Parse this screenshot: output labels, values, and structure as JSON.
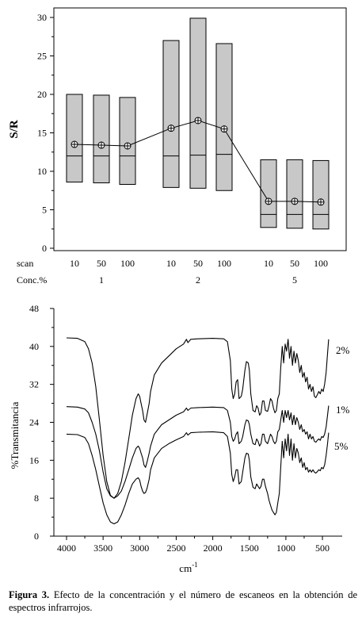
{
  "chart_data": [
    {
      "type": "box",
      "ylabel": "S/R",
      "xlabel": "",
      "ylim": [
        -1,
        31
      ],
      "yticks": [
        0,
        5,
        10,
        15,
        20,
        25,
        30
      ],
      "scan_row_label": "scan",
      "conc_row_label": "Conc.%",
      "categories": [
        "10",
        "50",
        "100",
        "10",
        "50",
        "100",
        "10",
        "50",
        "100"
      ],
      "groups": [
        {
          "label": "1",
          "members": [
            0,
            1,
            2
          ]
        },
        {
          "label": "2",
          "members": [
            3,
            4,
            5
          ]
        },
        {
          "label": "5",
          "members": [
            6,
            7,
            8
          ]
        }
      ],
      "boxes": [
        {
          "low": 8.6,
          "high": 20.0,
          "median": 12.0,
          "mean": 13.5
        },
        {
          "low": 8.5,
          "high": 19.9,
          "median": 12.0,
          "mean": 13.4
        },
        {
          "low": 8.3,
          "high": 19.6,
          "median": 12.0,
          "mean": 13.3
        },
        {
          "low": 7.9,
          "high": 27.0,
          "median": 12.0,
          "mean": 15.6
        },
        {
          "low": 7.8,
          "high": 29.9,
          "median": 12.1,
          "mean": 16.6
        },
        {
          "low": 7.5,
          "high": 26.6,
          "median": 12.2,
          "mean": 15.5
        },
        {
          "low": 2.7,
          "high": 11.5,
          "median": 4.4,
          "mean": 6.1
        },
        {
          "low": 2.6,
          "high": 11.5,
          "median": 4.4,
          "mean": 6.1
        },
        {
          "low": 2.5,
          "high": 11.4,
          "median": 4.4,
          "mean": 6.0
        }
      ],
      "mean_line": true
    },
    {
      "type": "line",
      "ylabel": "%Transmitancia",
      "xlabel": "cm",
      "xlabel_superscript": "-1",
      "xlim": [
        4000,
        400
      ],
      "ylim": [
        0,
        48
      ],
      "xticks": [
        4000,
        3500,
        3000,
        2500,
        2000,
        1500,
        1000,
        500
      ],
      "yticks": [
        0,
        8,
        16,
        24,
        32,
        40,
        48
      ],
      "series": [
        {
          "name": "2%",
          "color": "#000000",
          "x": [
            4000,
            3850,
            3750,
            3700,
            3650,
            3600,
            3550,
            3500,
            3450,
            3400,
            3350,
            3300,
            3250,
            3200,
            3150,
            3100,
            3050,
            3020,
            3000,
            2980,
            2960,
            2940,
            2920,
            2900,
            2870,
            2850,
            2800,
            2700,
            2600,
            2500,
            2400,
            2360,
            2340,
            2300,
            2200,
            2000,
            1850,
            1800,
            1760,
            1740,
            1720,
            1700,
            1680,
            1660,
            1640,
            1610,
            1590,
            1560,
            1540,
            1515,
            1500,
            1480,
            1450,
            1420,
            1400,
            1380,
            1360,
            1340,
            1320,
            1300,
            1280,
            1250,
            1230,
            1210,
            1190,
            1170,
            1150,
            1130,
            1110,
            1090,
            1070,
            1050,
            1030,
            1010,
            990,
            970,
            950,
            930,
            910,
            890,
            870,
            850,
            830,
            810,
            790,
            770,
            750,
            730,
            710,
            690,
            670,
            650,
            630,
            610,
            590,
            570,
            550,
            530,
            510,
            490,
            470,
            450,
            430,
            415
          ],
          "y": [
            41.8,
            41.7,
            41.0,
            39.5,
            36.5,
            31.5,
            24.5,
            17.0,
            11.5,
            8.6,
            8.0,
            9.0,
            11.5,
            15.5,
            20.5,
            25.5,
            29.0,
            30.0,
            29.5,
            28.0,
            26.5,
            24.5,
            24.0,
            25.5,
            28.0,
            30.5,
            34.0,
            36.5,
            38.0,
            39.5,
            40.5,
            41.5,
            40.8,
            41.5,
            41.6,
            41.7,
            41.6,
            41.0,
            37.0,
            31.0,
            29.0,
            30.0,
            32.5,
            33.0,
            29.0,
            29.5,
            31.0,
            35.0,
            36.8,
            36.5,
            35.0,
            30.0,
            26.5,
            26.2,
            27.5,
            27.0,
            25.5,
            26.0,
            28.5,
            28.5,
            26.5,
            26.3,
            27.5,
            29.0,
            28.5,
            27.0,
            26.0,
            26.5,
            29.0,
            30.0,
            35.5,
            40.0,
            36.5,
            40.5,
            39.0,
            41.5,
            37.5,
            40.0,
            36.0,
            39.0,
            36.5,
            38.5,
            37.0,
            34.5,
            36.0,
            33.5,
            34.5,
            32.5,
            33.5,
            31.0,
            32.0,
            30.5,
            31.5,
            29.5,
            29.2,
            29.8,
            30.5,
            30.0,
            31.0,
            30.5,
            32.0,
            34.5,
            38.5,
            41.5
          ]
        },
        {
          "name": "1%",
          "color": "#000000",
          "x": [
            4000,
            3850,
            3750,
            3700,
            3650,
            3600,
            3550,
            3500,
            3450,
            3400,
            3350,
            3300,
            3250,
            3200,
            3150,
            3100,
            3050,
            3020,
            3000,
            2980,
            2960,
            2940,
            2920,
            2900,
            2870,
            2850,
            2800,
            2700,
            2600,
            2500,
            2400,
            2360,
            2340,
            2300,
            2200,
            2000,
            1850,
            1800,
            1760,
            1740,
            1720,
            1700,
            1680,
            1660,
            1640,
            1610,
            1590,
            1560,
            1540,
            1515,
            1500,
            1480,
            1450,
            1420,
            1400,
            1380,
            1360,
            1340,
            1320,
            1300,
            1280,
            1250,
            1230,
            1210,
            1190,
            1170,
            1150,
            1130,
            1110,
            1090,
            1070,
            1050,
            1030,
            1010,
            990,
            970,
            950,
            930,
            910,
            890,
            870,
            850,
            830,
            810,
            790,
            770,
            750,
            730,
            710,
            690,
            670,
            650,
            630,
            610,
            590,
            570,
            550,
            530,
            510,
            490,
            470,
            450,
            430,
            415
          ],
          "y": [
            27.3,
            27.2,
            26.8,
            26.0,
            24.0,
            21.5,
            18.0,
            13.5,
            10.0,
            8.5,
            8.0,
            8.5,
            9.5,
            11.5,
            14.0,
            16.5,
            18.5,
            19.0,
            18.5,
            17.5,
            16.5,
            15.0,
            14.5,
            15.5,
            17.5,
            19.0,
            21.5,
            23.5,
            24.5,
            25.5,
            26.2,
            27.0,
            26.5,
            27.0,
            27.1,
            27.2,
            27.1,
            26.5,
            24.0,
            21.0,
            20.0,
            20.5,
            21.5,
            22.0,
            19.5,
            20.0,
            21.0,
            23.5,
            24.5,
            24.3,
            23.5,
            21.5,
            19.5,
            19.3,
            20.5,
            20.0,
            19.0,
            19.5,
            21.5,
            21.5,
            20.0,
            19.5,
            20.5,
            21.5,
            21.0,
            20.0,
            19.5,
            20.0,
            22.0,
            22.5,
            24.5,
            26.5,
            24.0,
            26.5,
            25.0,
            26.5,
            24.5,
            26.0,
            23.5,
            25.5,
            23.5,
            25.0,
            24.0,
            22.5,
            23.5,
            22.0,
            22.5,
            21.5,
            22.0,
            20.5,
            21.5,
            20.5,
            21.0,
            20.0,
            19.8,
            20.2,
            20.5,
            20.2,
            21.0,
            20.8,
            21.5,
            23.0,
            25.5,
            27.5
          ]
        },
        {
          "name": "5%",
          "color": "#000000",
          "x": [
            4000,
            3850,
            3750,
            3700,
            3650,
            3600,
            3550,
            3500,
            3450,
            3400,
            3350,
            3300,
            3250,
            3200,
            3150,
            3100,
            3050,
            3020,
            3000,
            2980,
            2960,
            2940,
            2920,
            2900,
            2870,
            2850,
            2800,
            2700,
            2600,
            2500,
            2400,
            2360,
            2340,
            2300,
            2200,
            2000,
            1850,
            1800,
            1760,
            1740,
            1720,
            1700,
            1680,
            1660,
            1640,
            1610,
            1590,
            1560,
            1540,
            1515,
            1500,
            1480,
            1450,
            1420,
            1400,
            1380,
            1360,
            1340,
            1320,
            1300,
            1280,
            1250,
            1230,
            1210,
            1190,
            1170,
            1150,
            1130,
            1110,
            1090,
            1070,
            1050,
            1030,
            1010,
            990,
            970,
            950,
            930,
            910,
            890,
            870,
            850,
            830,
            810,
            790,
            770,
            750,
            730,
            710,
            690,
            670,
            650,
            630,
            610,
            590,
            570,
            550,
            530,
            510,
            490,
            470,
            450,
            430,
            415
          ],
          "y": [
            21.5,
            21.4,
            20.8,
            19.5,
            17.0,
            14.0,
            10.5,
            7.0,
            4.5,
            3.0,
            2.6,
            3.0,
            4.5,
            6.5,
            9.0,
            11.0,
            12.0,
            12.3,
            11.8,
            10.5,
            9.5,
            9.0,
            9.2,
            10.0,
            12.0,
            14.0,
            16.5,
            18.5,
            19.5,
            20.3,
            21.0,
            21.8,
            21.3,
            21.8,
            21.9,
            22.0,
            21.8,
            21.0,
            17.5,
            13.0,
            11.5,
            12.5,
            14.0,
            14.0,
            11.0,
            11.5,
            13.5,
            16.5,
            17.5,
            17.3,
            16.0,
            12.5,
            10.3,
            10.0,
            11.0,
            10.5,
            10.0,
            10.5,
            12.0,
            12.0,
            10.5,
            9.0,
            7.5,
            6.5,
            5.5,
            5.0,
            4.5,
            5.0,
            7.0,
            9.0,
            14.5,
            20.0,
            16.5,
            20.5,
            18.0,
            21.5,
            17.0,
            20.5,
            16.0,
            19.5,
            16.5,
            18.5,
            17.5,
            15.5,
            16.5,
            14.5,
            15.5,
            14.0,
            14.5,
            13.5,
            14.0,
            13.5,
            14.0,
            13.5,
            13.3,
            13.6,
            14.0,
            13.8,
            14.5,
            14.2,
            15.0,
            17.0,
            19.5,
            21.8
          ]
        }
      ]
    }
  ],
  "caption": {
    "label": "Figura 3.",
    "text": "Efecto de la concentración y el número de escaneos en la obtención de espectros infrarrojos."
  }
}
